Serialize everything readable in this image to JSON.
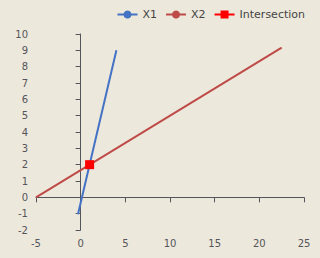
{
  "chart_data": {
    "type": "line",
    "series": [
      {
        "name": "X1",
        "color": "#4472C4",
        "x": [
          -0.3,
          4.0
        ],
        "values": [
          -1.03329,
          8.9999
        ]
      },
      {
        "name": "X2",
        "color": "#BE4B48",
        "x": [
          -5.0,
          22.5
        ],
        "values": [
          0.0002,
          9.16595
        ]
      },
      {
        "name": "Intersection",
        "color": "#FF0000",
        "x": [
          1
        ],
        "values": [
          2
        ],
        "marker": "square",
        "line_style": "dashed"
      }
    ],
    "xlim": [
      -5,
      25
    ],
    "xticks": [
      -5,
      0,
      5,
      10,
      15,
      20,
      25
    ],
    "ylim": [
      -2,
      10
    ],
    "yticks": [
      -2,
      -1,
      0,
      1,
      2,
      3,
      4,
      5,
      6,
      7,
      8,
      9,
      10
    ],
    "grid": false,
    "legend": "upper right"
  }
}
